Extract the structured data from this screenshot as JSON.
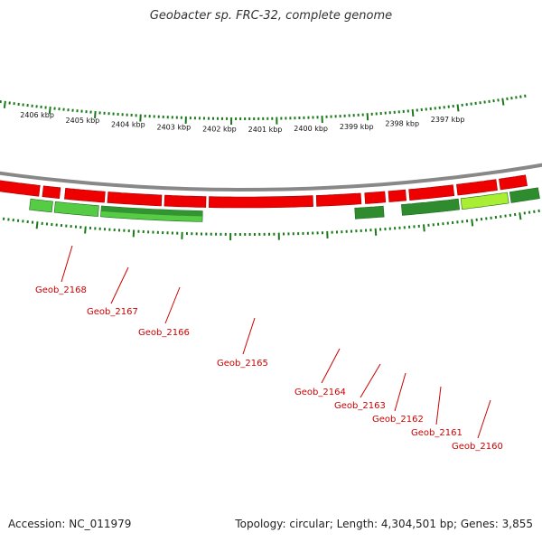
{
  "title": "Geobacter sp. FRC-32, complete genome",
  "footer": {
    "accession": "Accession: NC_011979",
    "info": "Topology: circular; Length: 4,304,501 bp; Genes: 3,855"
  },
  "colors": {
    "forward_gene": "#ee0000",
    "reverse_gene_light": "#55cc44",
    "reverse_gene_dark": "#2e8b2e",
    "highlight_gene": "#aaee33",
    "backbone": "#888888",
    "ticks": "#1a7a1a",
    "label": "#cc0000"
  },
  "scale": {
    "labels": [
      "2406 kbp",
      "2405 kbp",
      "2404 kbp",
      "2403 kbp",
      "2402 kbp",
      "2401 kbp",
      "2400 kbp",
      "2399 kbp",
      "2398 kbp",
      "2397 kbp"
    ]
  },
  "forward_genes": [
    {
      "start": 0.0,
      "end": 0.085
    },
    {
      "start": 0.092,
      "end": 0.125
    },
    {
      "start": 0.135,
      "end": 0.212
    },
    {
      "start": 0.218,
      "end": 0.322
    },
    {
      "start": 0.328,
      "end": 0.408
    },
    {
      "start": 0.414,
      "end": 0.615
    },
    {
      "start": 0.622,
      "end": 0.708
    },
    {
      "start": 0.716,
      "end": 0.755
    },
    {
      "start": 0.762,
      "end": 0.795
    },
    {
      "start": 0.802,
      "end": 0.888
    },
    {
      "start": 0.895,
      "end": 0.972
    },
    {
      "start": 0.978,
      "end": 1.03
    }
  ],
  "reverse_genes": [
    {
      "name": "Geob_2168",
      "start": 0.07,
      "end": 0.113,
      "shade": "light"
    },
    {
      "name": "Geob_2167",
      "start": 0.118,
      "end": 0.202,
      "shade": "light"
    },
    {
      "name": "Geob_2166",
      "start": 0.207,
      "end": 0.402,
      "shade": "mixed"
    },
    {
      "name": "Geob_2163",
      "start": 0.695,
      "end": 0.75,
      "shade": "dark"
    },
    {
      "name": "Geob_2161",
      "start": 0.785,
      "end": 0.895,
      "shade": "dark"
    },
    {
      "name": "Geob_2160",
      "start": 0.9,
      "end": 0.99,
      "shade": "highlight"
    },
    {
      "name": "",
      "start": 0.995,
      "end": 1.05,
      "shade": "dark"
    }
  ],
  "gene_labels": [
    {
      "name": "Geob_2168"
    },
    {
      "name": "Geob_2167"
    },
    {
      "name": "Geob_2166"
    },
    {
      "name": "Geob_2165"
    },
    {
      "name": "Geob_2164"
    },
    {
      "name": "Geob_2163"
    },
    {
      "name": "Geob_2162"
    },
    {
      "name": "Geob_2161"
    },
    {
      "name": "Geob_2160"
    }
  ]
}
